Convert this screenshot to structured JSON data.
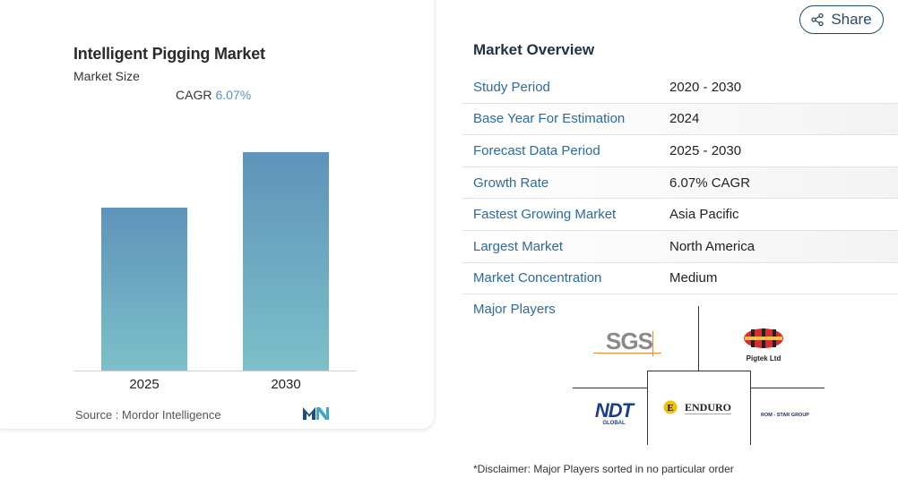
{
  "chart": {
    "title": "Intelligent Pigging Market",
    "subtitle": "Market Size",
    "cagr_label": "CAGR",
    "cagr_value": "6.07%",
    "source_label": "Source :",
    "source_value": "Mordor Intelligence",
    "bar_colors": [
      "#5f93ba",
      "#7cc0c9"
    ]
  },
  "chart_data": {
    "type": "bar",
    "categories": [
      "2025",
      "2030"
    ],
    "values": [
      1.0,
      1.34
    ],
    "title": "Intelligent Pigging Market",
    "xlabel": "",
    "ylabel": ""
  },
  "share": {
    "label": "Share",
    "icon": "share-icon"
  },
  "overview": {
    "title": "Market Overview",
    "rows": [
      {
        "label": "Study Period",
        "value": "2020 - 2030"
      },
      {
        "label": "Base Year For Estimation",
        "value": "2024"
      },
      {
        "label": "Forecast Data Period",
        "value": "2025 - 2030"
      },
      {
        "label": "Growth Rate",
        "value": "6.07% CAGR"
      },
      {
        "label": "Fastest Growing Market",
        "value": "Asia Pacific"
      },
      {
        "label": "Largest Market",
        "value": "North America"
      },
      {
        "label": "Market Concentration",
        "value": "Medium"
      }
    ]
  },
  "players": {
    "title": "Major Players",
    "logos": {
      "sgs": "SGS",
      "pigtek": "Pigtek Ltd",
      "ndt": "NDT",
      "ndt_sub": "GLOBAL",
      "enduro": "ENDURO",
      "romstar": "ROM - STAR GROUP"
    },
    "disclaimer": "*Disclaimer: Major Players sorted in no particular order"
  },
  "colors": {
    "accent": "#2c6aa0",
    "bar_top": "#5f93ba",
    "bar_bottom": "#7cc0c9"
  }
}
